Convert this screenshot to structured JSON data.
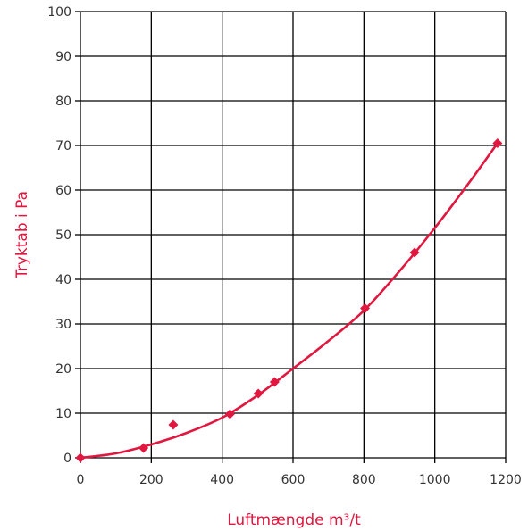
{
  "chart_data": {
    "type": "scatter",
    "title": "",
    "xlabel": "Luftmængde m³/t",
    "ylabel": "Tryktab i Pa",
    "xlim": [
      0,
      1200
    ],
    "ylim": [
      0,
      100
    ],
    "xticks": [
      "0",
      "200",
      "400",
      "600",
      "800",
      "1000",
      "1200"
    ],
    "yticks": [
      "0",
      "10",
      "20",
      "30",
      "40",
      "50",
      "60",
      "70",
      "80",
      "90",
      "100"
    ],
    "grid": true,
    "colors": {
      "series": "#e0173f",
      "grid": "#000000",
      "label": "#e0173f"
    },
    "series": [
      {
        "kind": "points",
        "marker": "diamond",
        "x": [
          0,
          178,
          262,
          422,
          502,
          548,
          803,
          943,
          1177
        ],
        "y": [
          0,
          2.2,
          7.4,
          9.8,
          14.4,
          17.0,
          33.5,
          46.0,
          70.5
        ]
      },
      {
        "kind": "fit-line",
        "x": [
          0,
          100,
          200,
          300,
          400,
          500,
          600,
          700,
          800,
          900,
          1000,
          1100,
          1177
        ],
        "y": [
          0,
          1.0,
          3.0,
          5.6,
          9.0,
          14.0,
          20.0,
          26.2,
          33.0,
          41.8,
          51.5,
          62.0,
          70.5
        ]
      }
    ]
  }
}
